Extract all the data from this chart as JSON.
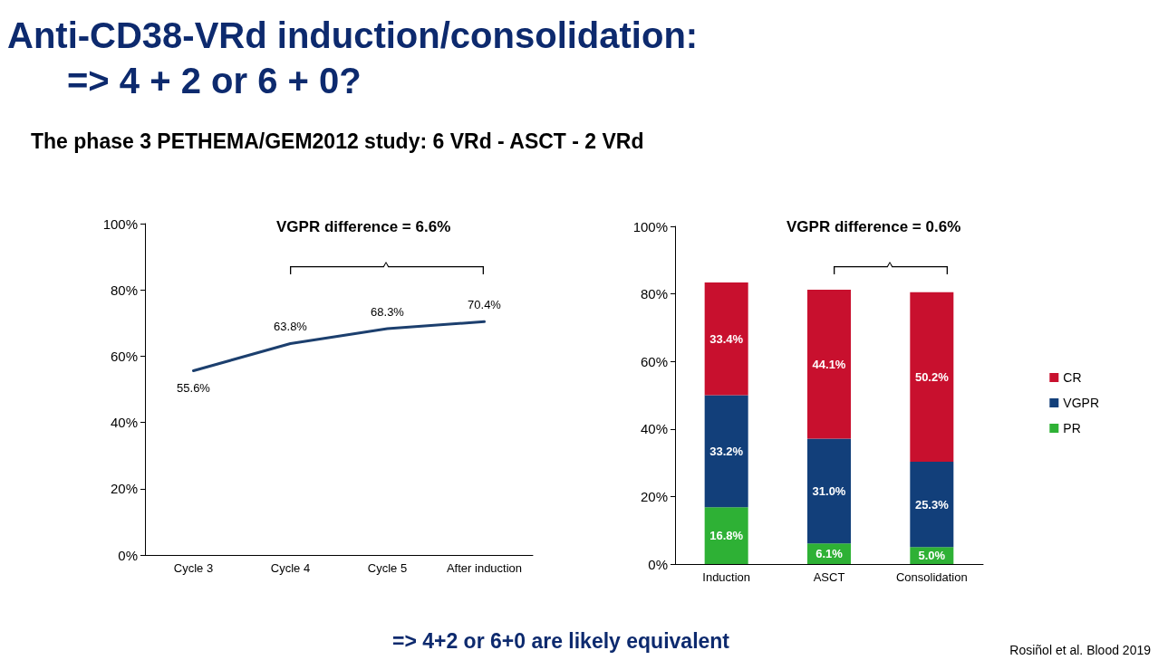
{
  "chart_data": [
    {
      "type": "line",
      "title": "Anti-CD38-VRd induction/consolidation:\n=> 4 + 2 or 6 + 0?",
      "subtitle": "The phase 3 PETHEMA/GEM2012 study: 6 VRd - ASCT - 2 VRd",
      "categories": [
        "Cycle 3",
        "Cycle 4",
        "Cycle 5",
        "After induction"
      ],
      "series": [
        {
          "color": "#1c3f6e",
          "values": [
            55.6,
            63.8,
            68.3,
            70.4
          ],
          "value_labels": [
            "55.6%",
            "63.8%",
            "68.3%",
            "70.4%"
          ]
        }
      ],
      "ylim": [
        0,
        100
      ],
      "yticks": [
        {
          "value": 0,
          "label": "0%"
        },
        {
          "value": 20,
          "label": "20%"
        },
        {
          "value": 40,
          "label": "40%"
        },
        {
          "value": 60,
          "label": "60%"
        },
        {
          "value": 80,
          "label": "80%"
        },
        {
          "value": 100,
          "label": "100%"
        }
      ],
      "marker": "none",
      "grid": false,
      "legend": false,
      "annotations": [
        "VGPR difference = 6.6%",
        "=> 4+2 or 6+0 are likely equivalent",
        "Rosiñol et al. Blood 2019"
      ]
    },
    {
      "type": "bar",
      "stacked": true,
      "categories": [
        "Induction",
        "ASCT",
        "Consolidation"
      ],
      "series": [
        {
          "name": "PR",
          "color": "#2eb135",
          "values": [
            16.8,
            6.1,
            5.0
          ],
          "value_labels": [
            "16.8%",
            "6.1%",
            "5.0%"
          ]
        },
        {
          "name": "VGPR",
          "color": "#123f7a",
          "values": [
            33.2,
            31.0,
            25.3
          ],
          "value_labels": [
            "33.2%",
            "31.0%",
            "25.3%"
          ]
        },
        {
          "name": "CR",
          "color": "#c8102e",
          "values": [
            33.4,
            44.1,
            50.2
          ],
          "value_labels": [
            "33.4%",
            "44.1%",
            "50.2%"
          ]
        }
      ],
      "ylim": [
        0,
        100
      ],
      "yticks": [
        {
          "value": 0,
          "label": "0%"
        },
        {
          "value": 20,
          "label": "20%"
        },
        {
          "value": 40,
          "label": "40%"
        },
        {
          "value": 60,
          "label": "60%"
        },
        {
          "value": 80,
          "label": "80%"
        },
        {
          "value": 100,
          "label": "100%"
        }
      ],
      "grid": false,
      "legend": "right",
      "annotations": [
        "VGPR difference = 0.6%"
      ]
    }
  ]
}
